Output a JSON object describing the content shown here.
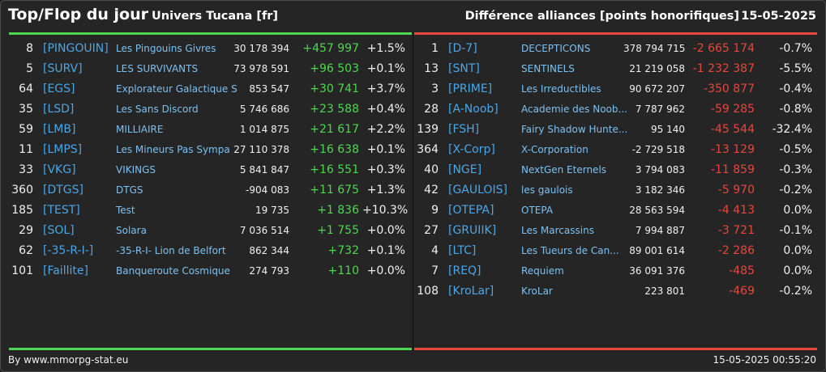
{
  "header": {
    "title": "Top/Flop du jour",
    "universe": "Univers Tucana [fr]",
    "subtitle": "Différence alliances [points honorifiques]",
    "date": "15-05-2025"
  },
  "colors": {
    "positive": "#4fd64f",
    "negative": "#e8463c",
    "tag": "#4aa6e6",
    "name": "#7cc0f0"
  },
  "top": [
    {
      "rank": "8",
      "tag": "[PINGOUIN]",
      "name": "Les Pingouins Givres",
      "points": "30 178 394",
      "diff": "+457 997",
      "pct": "+1.5%"
    },
    {
      "rank": "5",
      "tag": "[SURV]",
      "name": "LES SURVIVANTS",
      "points": "73 978 591",
      "diff": "+96 503",
      "pct": "+0.1%"
    },
    {
      "rank": "64",
      "tag": "[EGS]",
      "name": "Explorateur Galactique S",
      "points": "853 547",
      "diff": "+30 741",
      "pct": "+3.7%"
    },
    {
      "rank": "35",
      "tag": "[LSD]",
      "name": "Les Sans Discord",
      "points": "5 746 686",
      "diff": "+23 588",
      "pct": "+0.4%"
    },
    {
      "rank": "59",
      "tag": "[LMB]",
      "name": "MILLIAIRE",
      "points": "1 014 875",
      "diff": "+21 617",
      "pct": "+2.2%"
    },
    {
      "rank": "11",
      "tag": "[LMPS]",
      "name": "Les Mineurs Pas Sympa",
      "points": "27 110 378",
      "diff": "+16 638",
      "pct": "+0.1%"
    },
    {
      "rank": "33",
      "tag": "[VKG]",
      "name": "VIKINGS",
      "points": "5 841 847",
      "diff": "+16 551",
      "pct": "+0.3%"
    },
    {
      "rank": "360",
      "tag": "[DTGS]",
      "name": "DTGS",
      "points": "-904 083",
      "diff": "+11 675",
      "pct": "+1.3%"
    },
    {
      "rank": "185",
      "tag": "[TEST]",
      "name": "Test",
      "points": "19 735",
      "diff": "+1 836",
      "pct": "+10.3%"
    },
    {
      "rank": "29",
      "tag": "[SOL]",
      "name": "Solara",
      "points": "7 036 514",
      "diff": "+1 755",
      "pct": "+0.0%"
    },
    {
      "rank": "62",
      "tag": "[-35-R-I-]",
      "name": "-35-R-I- Lion de Belfort",
      "points": "862 344",
      "diff": "+732",
      "pct": "+0.1%"
    },
    {
      "rank": "101",
      "tag": "[Faillite]",
      "name": "Banqueroute Cosmique",
      "points": "274 793",
      "diff": "+110",
      "pct": "+0.0%"
    }
  ],
  "flop": [
    {
      "rank": "1",
      "tag": "[D-7]",
      "name": "DECEPTICONS",
      "points": "378 794 715",
      "diff": "-2 665 174",
      "pct": "-0.7%"
    },
    {
      "rank": "13",
      "tag": "[SNT]",
      "name": "SENTINELS",
      "points": "21 219 058",
      "diff": "-1 232 387",
      "pct": "-5.5%"
    },
    {
      "rank": "3",
      "tag": "[PRIME]",
      "name": "Les Irreductibles",
      "points": "90 672 207",
      "diff": "-350 877",
      "pct": "-0.4%"
    },
    {
      "rank": "28",
      "tag": "[A-Noob]",
      "name": "Academie des Noob...",
      "points": "7 787 962",
      "diff": "-59 285",
      "pct": "-0.8%"
    },
    {
      "rank": "139",
      "tag": "[FSH]",
      "name": "Fairy Shadow Hunte...",
      "points": "95 140",
      "diff": "-45 544",
      "pct": "-32.4%"
    },
    {
      "rank": "364",
      "tag": "[X-Corp]",
      "name": "X-Corporation",
      "points": "-2 729 518",
      "diff": "-13 129",
      "pct": "-0.5%"
    },
    {
      "rank": "40",
      "tag": "[NGE]",
      "name": "NextGen Eternels",
      "points": "3 794 083",
      "diff": "-11 859",
      "pct": "-0.3%"
    },
    {
      "rank": "42",
      "tag": "[GAULOIS]",
      "name": "les gaulois",
      "points": "3 182 346",
      "diff": "-5 970",
      "pct": "-0.2%"
    },
    {
      "rank": "9",
      "tag": "[OTEPA]",
      "name": "OTEPA",
      "points": "28 563 594",
      "diff": "-4 413",
      "pct": "0.0%"
    },
    {
      "rank": "27",
      "tag": "[GRUIIK]",
      "name": "Les Marcassins",
      "points": "7 994 887",
      "diff": "-3 721",
      "pct": "-0.1%"
    },
    {
      "rank": "4",
      "tag": "[LTC]",
      "name": "Les Tueurs de Can...",
      "points": "89 001 614",
      "diff": "-2 286",
      "pct": "0.0%"
    },
    {
      "rank": "7",
      "tag": "[REQ]",
      "name": "Requiem",
      "points": "36 091 376",
      "diff": "-485",
      "pct": "0.0%"
    },
    {
      "rank": "108",
      "tag": "[KroLar]",
      "name": "KroLar",
      "points": "223 801",
      "diff": "-469",
      "pct": "-0.2%"
    }
  ],
  "footer": {
    "source": "By www.mmorpg-stat.eu",
    "timestamp": "15-05-2025 00:55:20"
  }
}
